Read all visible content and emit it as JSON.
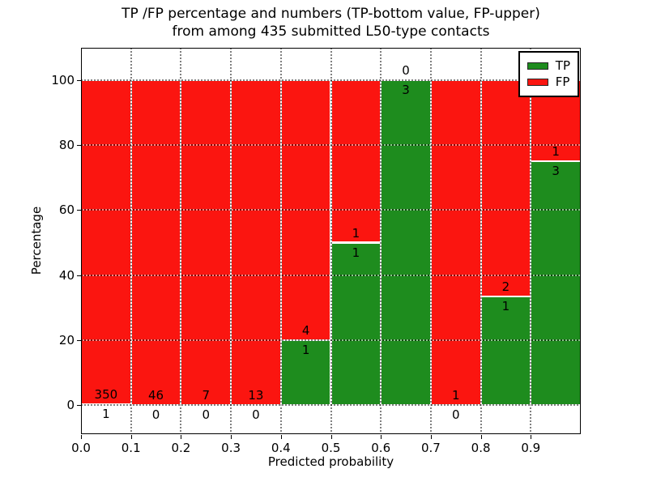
{
  "title": {
    "line1": "TP /FP percentage and numbers (TP-bottom value, FP-upper)",
    "line2": "from among 435 submitted L50-type contacts"
  },
  "axes": {
    "xlabel": "Predicted probability",
    "ylabel": "Percentage"
  },
  "legend": {
    "position": "upper right",
    "items": [
      {
        "label": "TP",
        "color": "#1e8c1e"
      },
      {
        "label": "FP",
        "color": "#fb1510"
      }
    ]
  },
  "colors": {
    "tp_green": "#1e8c1e",
    "fp_red": "#fb1510",
    "bar_edge": "#ffffff",
    "grid": "#000000",
    "background": "#ffffff"
  },
  "chart_data": {
    "type": "bar",
    "stacked": true,
    "title": "TP /FP percentage and numbers (TP-bottom value, FP-upper) from among 435 submitted L50-type contacts",
    "xlabel": "Predicted probability",
    "ylabel": "Percentage",
    "total_submitted_contacts": 435,
    "contact_type": "L50",
    "xlim": [
      0.0,
      1.0
    ],
    "ylim": [
      -9,
      110
    ],
    "grid": "dotted",
    "legend_position": "upper right",
    "bin_width": 0.1,
    "x_ticks": [
      {
        "v": 0.0,
        "label": "0.0"
      },
      {
        "v": 0.1,
        "label": "0.1"
      },
      {
        "v": 0.2,
        "label": "0.2"
      },
      {
        "v": 0.3,
        "label": "0.3"
      },
      {
        "v": 0.4,
        "label": "0.4"
      },
      {
        "v": 0.5,
        "label": "0.5"
      },
      {
        "v": 0.6,
        "label": "0.6"
      },
      {
        "v": 0.7,
        "label": "0.7"
      },
      {
        "v": 0.8,
        "label": "0.8"
      },
      {
        "v": 0.9,
        "label": "0.9"
      }
    ],
    "y_ticks": [
      {
        "v": 0,
        "label": "0"
      },
      {
        "v": 20,
        "label": "20"
      },
      {
        "v": 40,
        "label": "40"
      },
      {
        "v": 60,
        "label": "60"
      },
      {
        "v": 80,
        "label": "80"
      },
      {
        "v": 100,
        "label": "100"
      }
    ],
    "series": [
      {
        "name": "TP",
        "color": "#1e8c1e"
      },
      {
        "name": "FP",
        "color": "#fb1510"
      }
    ],
    "bins": [
      {
        "x0": 0.0,
        "x1": 0.1,
        "tp": 1,
        "fp": 350,
        "tp_pct": 0.28,
        "fp_pct": 99.72
      },
      {
        "x0": 0.1,
        "x1": 0.2,
        "tp": 0,
        "fp": 46,
        "tp_pct": 0,
        "fp_pct": 100
      },
      {
        "x0": 0.2,
        "x1": 0.3,
        "tp": 0,
        "fp": 7,
        "tp_pct": 0,
        "fp_pct": 100
      },
      {
        "x0": 0.3,
        "x1": 0.4,
        "tp": 0,
        "fp": 13,
        "tp_pct": 0,
        "fp_pct": 100
      },
      {
        "x0": 0.4,
        "x1": 0.5,
        "tp": 1,
        "fp": 4,
        "tp_pct": 20,
        "fp_pct": 80
      },
      {
        "x0": 0.5,
        "x1": 0.6,
        "tp": 1,
        "fp": 1,
        "tp_pct": 50,
        "fp_pct": 50
      },
      {
        "x0": 0.6,
        "x1": 0.7,
        "tp": 3,
        "fp": 0,
        "tp_pct": 100,
        "fp_pct": 0
      },
      {
        "x0": 0.7,
        "x1": 0.8,
        "tp": 0,
        "fp": 1,
        "tp_pct": 0,
        "fp_pct": 100
      },
      {
        "x0": 0.8,
        "x1": 0.9,
        "tp": 1,
        "fp": 2,
        "tp_pct": 33.33,
        "fp_pct": 66.67
      },
      {
        "x0": 0.9,
        "x1": 1.0,
        "tp": 3,
        "fp": 1,
        "tp_pct": 75,
        "fp_pct": 25
      }
    ]
  }
}
